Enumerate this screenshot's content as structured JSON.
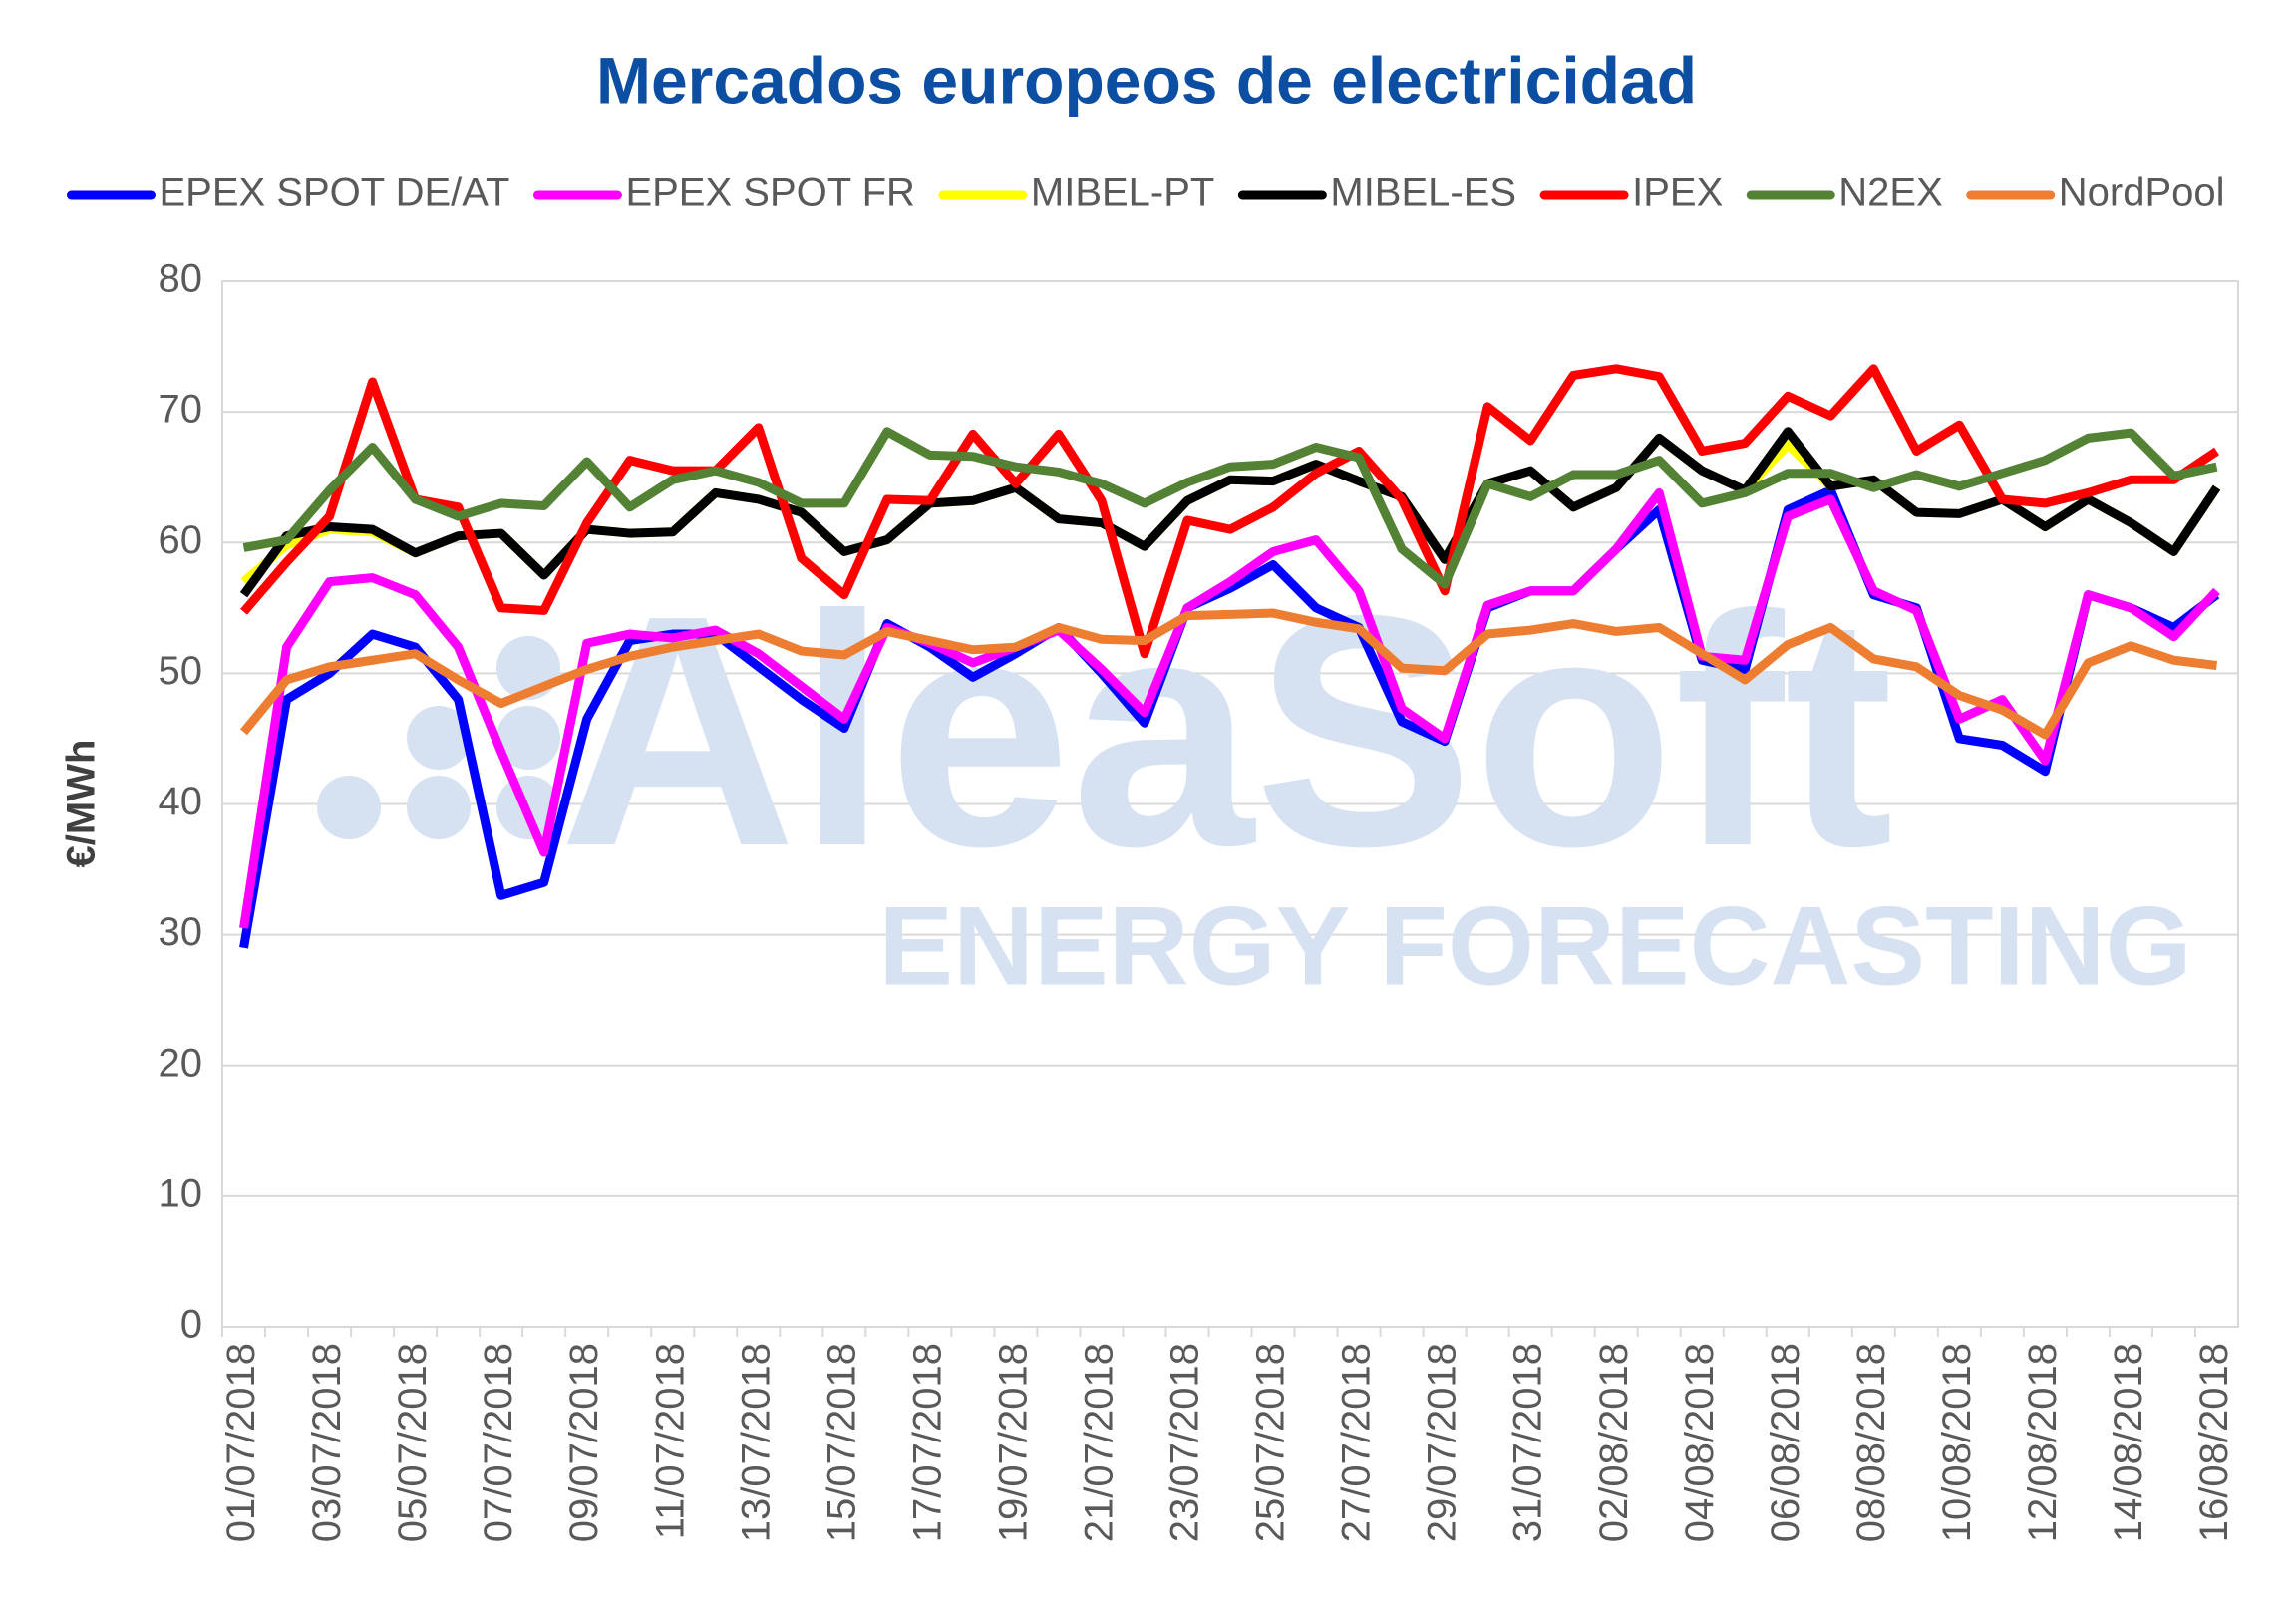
{
  "chart_data": {
    "type": "line",
    "title": "Mercados europeos de electricidad",
    "y_label": "€/MWh",
    "watermark": {
      "logo": "AleaSoft",
      "tagline": "ENERGY FORECASTING"
    },
    "legend": "top",
    "grid": true,
    "ylim": [
      0,
      80
    ],
    "yticks": [
      0,
      10,
      20,
      30,
      40,
      50,
      60,
      70,
      80
    ],
    "categories": [
      "01/07/2018",
      null,
      "03/07/2018",
      null,
      "05/07/2018",
      null,
      "07/07/2018",
      null,
      "09/07/2018",
      null,
      "11/07/2018",
      null,
      "13/07/2018",
      null,
      "15/07/2018",
      null,
      "17/07/2018",
      null,
      "19/07/2018",
      null,
      "21/07/2018",
      null,
      "23/07/2018",
      null,
      "25/07/2018",
      null,
      "27/07/2018",
      null,
      "29/07/2018",
      null,
      "31/07/2018",
      null,
      "02/08/2018",
      null,
      "04/08/2018",
      null,
      "06/08/2018",
      null,
      "08/08/2018",
      null,
      "10/08/2018",
      null,
      "12/08/2018",
      null,
      "14/08/2018",
      null,
      "16/08/2018"
    ],
    "series": [
      {
        "name": "EPEX SPOT DE/AT",
        "color": "#0000ff",
        "values": [
          29,
          48,
          50,
          53,
          52,
          48,
          33,
          34,
          46.5,
          52.5,
          53,
          53,
          50.5,
          48,
          45.8,
          53.8,
          52,
          49.7,
          51.5,
          53.5,
          50,
          46.2,
          55,
          56.5,
          58.3,
          55,
          53.5,
          46.3,
          44.8,
          55,
          56.3,
          56.3,
          59.5,
          62.5,
          51,
          50.3,
          62.5,
          64,
          56,
          55,
          45,
          44.5,
          42.5,
          56,
          55,
          53.5,
          56
        ]
      },
      {
        "name": "EPEX SPOT FR",
        "color": "#ff00ff",
        "values": [
          30.5,
          52,
          57,
          57.3,
          56,
          52,
          44,
          36.3,
          52.3,
          53,
          52.7,
          53.3,
          51.5,
          49,
          46.5,
          53.5,
          52.3,
          50.8,
          52,
          53.3,
          50.3,
          47,
          55,
          57,
          59.3,
          60.2,
          56.3,
          47.3,
          45,
          55.2,
          56.3,
          56.3,
          59.5,
          63.8,
          51.3,
          51,
          62,
          63.3,
          56.3,
          54.8,
          46.5,
          48,
          43.3,
          56,
          55,
          52.8,
          56.3
        ]
      },
      {
        "name": "MIBEL-PT",
        "color": "#ffff00",
        "values": [
          57,
          59.8,
          61,
          60.8,
          59.2,
          60.5,
          60.7,
          57.5,
          61,
          60.7,
          60.8,
          63.8,
          63.3,
          62.3,
          59.3,
          60.2,
          63,
          63.2,
          64.2,
          61.8,
          61.5,
          59.7,
          63.2,
          64.8,
          64.7,
          66,
          64.7,
          63.5,
          58.7,
          64.5,
          65.5,
          62.7,
          64.2,
          68,
          65.5,
          64,
          67.5,
          64.3,
          64.8,
          62.3,
          62.2,
          63.3,
          61.2,
          63.3,
          61.5,
          59.3,
          64.2
        ]
      },
      {
        "name": "MIBEL-ES",
        "color": "#000000",
        "values": [
          56,
          60.5,
          61.2,
          61,
          59.2,
          60.5,
          60.7,
          57.5,
          61,
          60.7,
          60.8,
          63.8,
          63.3,
          62.3,
          59.3,
          60.2,
          63,
          63.2,
          64.2,
          61.8,
          61.5,
          59.7,
          63.2,
          64.8,
          64.7,
          66,
          64.7,
          63.5,
          58.7,
          64.5,
          65.5,
          62.7,
          64.2,
          68,
          65.5,
          64,
          68.5,
          64.3,
          64.8,
          62.3,
          62.2,
          63.3,
          61.2,
          63.3,
          61.5,
          59.3,
          64.2
        ]
      },
      {
        "name": "IPEX",
        "color": "#ff0000",
        "values": [
          54.7,
          58.5,
          62,
          72.3,
          63.3,
          62.7,
          55,
          54.8,
          61.5,
          66.3,
          65.5,
          65.5,
          68.8,
          58.8,
          56,
          63.3,
          63.2,
          68.3,
          64.5,
          68.3,
          63.2,
          51.5,
          61.7,
          61,
          62.7,
          65.3,
          67,
          63.3,
          56.3,
          70.4,
          67.8,
          72.8,
          73.3,
          72.7,
          67,
          67.6,
          71.2,
          69.7,
          73.3,
          67,
          69,
          63.3,
          63,
          63.8,
          64.8,
          64.8,
          67
        ]
      },
      {
        "name": "N2EX",
        "color": "#548235",
        "values": [
          59.6,
          60.2,
          64,
          67.3,
          63.3,
          62,
          63,
          62.8,
          66.2,
          62.7,
          64.8,
          65.5,
          64.6,
          63,
          63,
          68.5,
          66.7,
          66.6,
          65.8,
          65.4,
          64.5,
          63,
          64.6,
          65.8,
          66,
          67.3,
          66.5,
          59.5,
          56.8,
          64.5,
          63.5,
          65.2,
          65.2,
          66.3,
          63,
          63.8,
          65.3,
          65.3,
          64.2,
          65.2,
          64.3,
          65.3,
          66.3,
          68,
          68.4,
          65.1,
          65.8
        ]
      },
      {
        "name": "NordPool",
        "color": "#ed7d31",
        "values": [
          45.5,
          49.5,
          50.5,
          51,
          51.5,
          49.5,
          47.7,
          49,
          50.3,
          51.3,
          52,
          52.5,
          53,
          51.7,
          51.4,
          53.2,
          52.5,
          51.8,
          52,
          53.5,
          52.6,
          52.5,
          54.4,
          54.5,
          54.6,
          53.9,
          53.4,
          50.4,
          50.2,
          53,
          53.3,
          53.8,
          53.2,
          53.5,
          51.5,
          49.5,
          52.2,
          53.5,
          51.1,
          50.5,
          48.3,
          47.2,
          45.3,
          50.8,
          52.1,
          51,
          50.6
        ]
      }
    ]
  }
}
